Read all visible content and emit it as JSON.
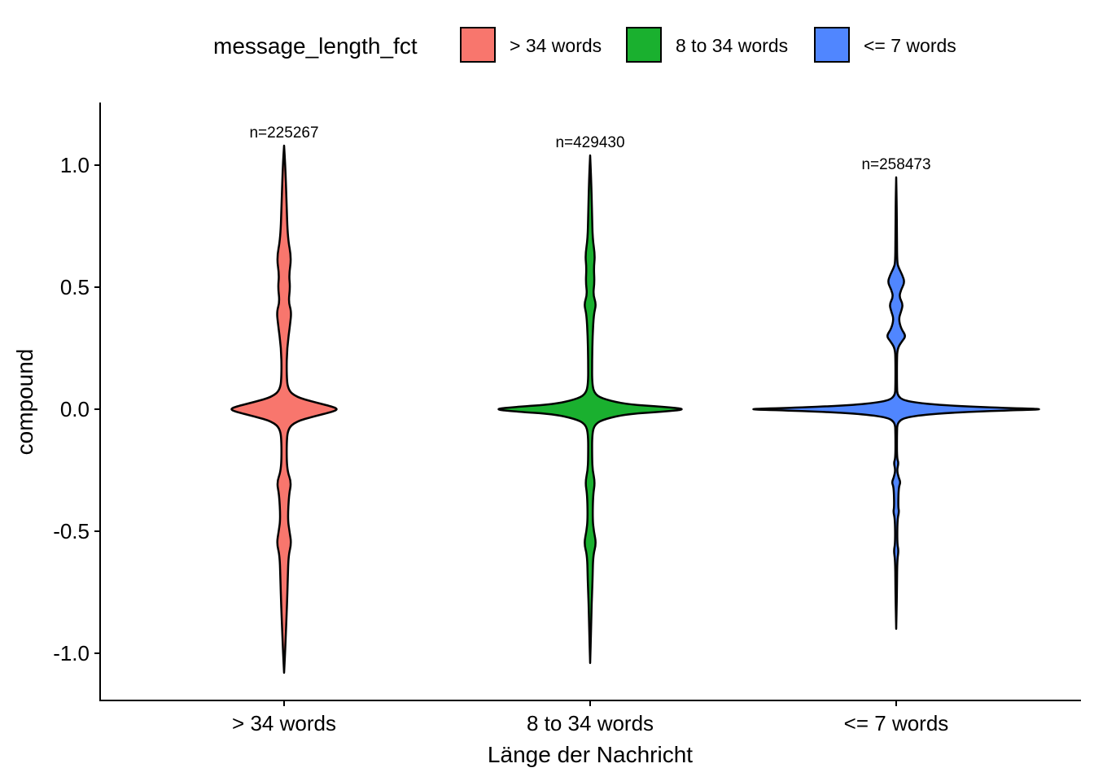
{
  "chart_data": {
    "type": "violin",
    "xlabel": "Länge der Nachricht",
    "ylabel": "compound",
    "ylim": [
      -1.19,
      1.25
    ],
    "yticks": [
      {
        "value": 1.0,
        "label": "1.0"
      },
      {
        "value": 0.5,
        "label": "0.5"
      },
      {
        "value": 0.0,
        "label": "0.0"
      },
      {
        "value": -0.5,
        "label": "-0.5"
      },
      {
        "value": -1.0,
        "label": "-1.0"
      }
    ],
    "legend": {
      "title": "message_length_fct",
      "position": "top",
      "entries": [
        {
          "label": "> 34 words",
          "color": "#F8766D"
        },
        {
          "label": "8 to 34 words",
          "color": "#1AB02F"
        },
        {
          "label": "<= 7 words",
          "color": "#5086FF"
        }
      ]
    },
    "categories": [
      "> 34 words",
      "8 to 34 words",
      "<= 7 words"
    ],
    "series": [
      {
        "category": "> 34 words",
        "color": "#F8766D",
        "n_label": "n=225267",
        "y_range": [
          -1.08,
          1.08
        ],
        "density_profile": [
          [
            1.08,
            0.0
          ],
          [
            1.0,
            0.005
          ],
          [
            0.85,
            0.01
          ],
          [
            0.7,
            0.015
          ],
          [
            0.62,
            0.03
          ],
          [
            0.55,
            0.02
          ],
          [
            0.5,
            0.025
          ],
          [
            0.44,
            0.018
          ],
          [
            0.4,
            0.03
          ],
          [
            0.35,
            0.025
          ],
          [
            0.25,
            0.012
          ],
          [
            0.15,
            0.01
          ],
          [
            0.08,
            0.015
          ],
          [
            0.05,
            0.05
          ],
          [
            0.03,
            0.12
          ],
          [
            0.01,
            0.2
          ],
          [
            0.0,
            0.22
          ],
          [
            -0.01,
            0.2
          ],
          [
            -0.03,
            0.12
          ],
          [
            -0.05,
            0.05
          ],
          [
            -0.08,
            0.015
          ],
          [
            -0.15,
            0.01
          ],
          [
            -0.25,
            0.012
          ],
          [
            -0.3,
            0.03
          ],
          [
            -0.35,
            0.02
          ],
          [
            -0.45,
            0.015
          ],
          [
            -0.5,
            0.022
          ],
          [
            -0.55,
            0.03
          ],
          [
            -0.6,
            0.018
          ],
          [
            -0.7,
            0.015
          ],
          [
            -0.8,
            0.012
          ],
          [
            -0.9,
            0.008
          ],
          [
            -1.0,
            0.004
          ],
          [
            -1.08,
            0.0
          ]
        ]
      },
      {
        "category": "8 to 34 words",
        "color": "#1AB02F",
        "n_label": "n=429430",
        "y_range": [
          -1.04,
          1.04
        ],
        "density_profile": [
          [
            1.04,
            0.0
          ],
          [
            0.95,
            0.004
          ],
          [
            0.8,
            0.008
          ],
          [
            0.7,
            0.01
          ],
          [
            0.63,
            0.02
          ],
          [
            0.58,
            0.015
          ],
          [
            0.52,
            0.018
          ],
          [
            0.47,
            0.012
          ],
          [
            0.43,
            0.025
          ],
          [
            0.39,
            0.015
          ],
          [
            0.3,
            0.01
          ],
          [
            0.2,
            0.008
          ],
          [
            0.1,
            0.008
          ],
          [
            0.06,
            0.02
          ],
          [
            0.04,
            0.06
          ],
          [
            0.02,
            0.15
          ],
          [
            0.01,
            0.3
          ],
          [
            0.0,
            0.4
          ],
          [
            -0.01,
            0.3
          ],
          [
            -0.02,
            0.15
          ],
          [
            -0.04,
            0.06
          ],
          [
            -0.06,
            0.02
          ],
          [
            -0.1,
            0.008
          ],
          [
            -0.2,
            0.008
          ],
          [
            -0.25,
            0.01
          ],
          [
            -0.3,
            0.02
          ],
          [
            -0.35,
            0.012
          ],
          [
            -0.45,
            0.01
          ],
          [
            -0.5,
            0.015
          ],
          [
            -0.55,
            0.025
          ],
          [
            -0.6,
            0.012
          ],
          [
            -0.7,
            0.01
          ],
          [
            -0.8,
            0.006
          ],
          [
            -0.9,
            0.004
          ],
          [
            -1.04,
            0.0
          ]
        ]
      },
      {
        "category": "<= 7 words",
        "color": "#5086FF",
        "n_label": "n=258473",
        "y_range": [
          -0.9,
          0.95
        ],
        "density_profile": [
          [
            0.95,
            0.0
          ],
          [
            0.85,
            0.002
          ],
          [
            0.7,
            0.003
          ],
          [
            0.6,
            0.004
          ],
          [
            0.58,
            0.01
          ],
          [
            0.55,
            0.025
          ],
          [
            0.52,
            0.035
          ],
          [
            0.49,
            0.02
          ],
          [
            0.46,
            0.012
          ],
          [
            0.43,
            0.028
          ],
          [
            0.4,
            0.02
          ],
          [
            0.37,
            0.01
          ],
          [
            0.33,
            0.02
          ],
          [
            0.3,
            0.04
          ],
          [
            0.28,
            0.025
          ],
          [
            0.25,
            0.005
          ],
          [
            0.2,
            0.003
          ],
          [
            0.1,
            0.003
          ],
          [
            0.05,
            0.005
          ],
          [
            0.03,
            0.05
          ],
          [
            0.015,
            0.2
          ],
          [
            0.005,
            0.45
          ],
          [
            0.0,
            0.63
          ],
          [
            -0.005,
            0.45
          ],
          [
            -0.015,
            0.2
          ],
          [
            -0.03,
            0.05
          ],
          [
            -0.05,
            0.005
          ],
          [
            -0.1,
            0.003
          ],
          [
            -0.2,
            0.003
          ],
          [
            -0.22,
            0.01
          ],
          [
            -0.25,
            0.003
          ],
          [
            -0.28,
            0.01
          ],
          [
            -0.3,
            0.018
          ],
          [
            -0.32,
            0.01
          ],
          [
            -0.4,
            0.008
          ],
          [
            -0.42,
            0.012
          ],
          [
            -0.45,
            0.005
          ],
          [
            -0.55,
            0.004
          ],
          [
            -0.58,
            0.01
          ],
          [
            -0.62,
            0.004
          ],
          [
            -0.75,
            0.003
          ],
          [
            -0.9,
            0.0
          ]
        ]
      }
    ]
  }
}
